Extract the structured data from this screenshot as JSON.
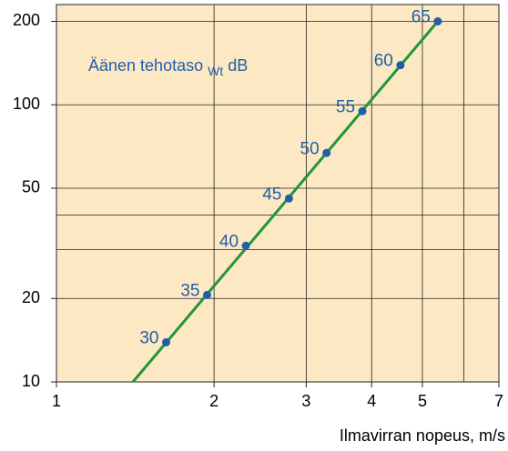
{
  "chart_data": {
    "type": "line",
    "annotation": "Äänen tehotaso",
    "annotation_sub": "Wt",
    "annotation_unit": "dB",
    "xlabel": "Ilmavirran nopeus, m/s",
    "x": [
      1.62,
      1.94,
      2.3,
      2.78,
      3.28,
      3.84,
      4.54,
      5.35
    ],
    "values": [
      13.9,
      20.6,
      31.0,
      45.9,
      67.0,
      94.8,
      139,
      200
    ],
    "point_labels": [
      30,
      35,
      40,
      45,
      50,
      55,
      60,
      65
    ],
    "point_color": "#1f5fa8",
    "fit_line": {
      "x": [
        1.4,
        5.35
      ],
      "values": [
        10,
        200
      ],
      "color": "#21963a"
    },
    "log_x": true,
    "log_y": true,
    "xlim": [
      1,
      7
    ],
    "ylim": [
      10,
      230
    ],
    "xticks": [
      1,
      2,
      3,
      4,
      5,
      7
    ],
    "yticks": [
      10,
      20,
      50,
      100,
      200
    ],
    "xgrid": [
      2,
      3,
      4,
      5,
      6
    ],
    "ygrid": [
      20,
      30,
      40,
      50,
      100,
      200
    ],
    "background": "#fde8c4"
  }
}
